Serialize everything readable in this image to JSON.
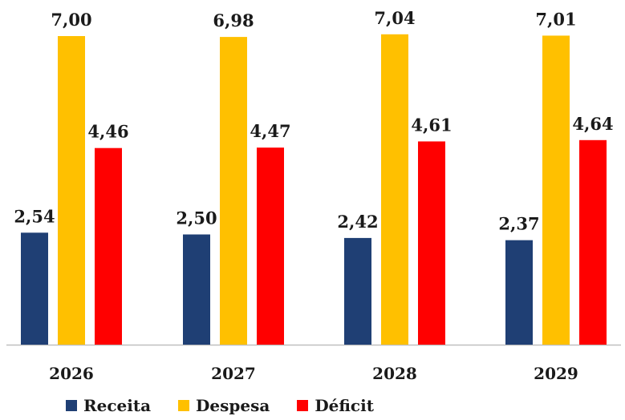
{
  "chart_data": {
    "type": "bar",
    "title": "",
    "xlabel": "",
    "ylabel": "",
    "categories": [
      "2026",
      "2027",
      "2028",
      "2029"
    ],
    "series": [
      {
        "name": "Receita",
        "color": "#1f3f74",
        "values": [
          2.54,
          2.5,
          2.42,
          2.37
        ],
        "labels": [
          "2,54",
          "2,50",
          "2,42",
          "2,37"
        ]
      },
      {
        "name": "Despesa",
        "color": "#ffc000",
        "values": [
          7.0,
          6.98,
          7.04,
          7.01
        ],
        "labels": [
          "7,00",
          "6,98",
          "7,04",
          "7,01"
        ]
      },
      {
        "name": "Déficit",
        "color": "#ff0000",
        "values": [
          4.46,
          4.47,
          4.61,
          4.64
        ],
        "labels": [
          "4,46",
          "4,47",
          "4,61",
          "4,64"
        ]
      }
    ],
    "ylim": [
      0,
      7.04
    ],
    "grid": false,
    "y_axis_visible": false,
    "legend_position": "bottom",
    "axis_color": "#bfbfbf"
  }
}
